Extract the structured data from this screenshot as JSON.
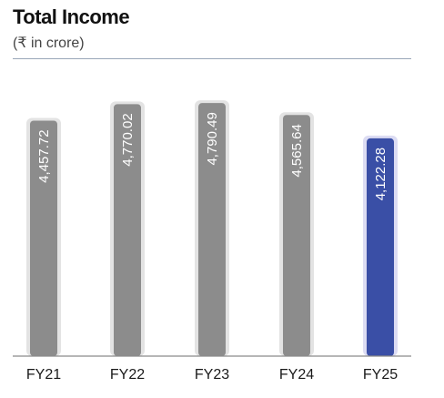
{
  "chart_data": {
    "type": "bar",
    "title": "Total Income",
    "subtitle": "(₹ in crore)",
    "categories": [
      "FY21",
      "FY22",
      "FY23",
      "FY24",
      "FY25"
    ],
    "values": [
      4457.72,
      4770.02,
      4790.49,
      4565.64,
      4122.28
    ],
    "value_labels": [
      "4,457.72",
      "4,770.02",
      "4,790.49",
      "4,565.64",
      "4,122.28"
    ],
    "xlabel": "",
    "ylabel": "",
    "ylim": [
      0,
      5500
    ],
    "grid": false,
    "legend": "none",
    "highlight_index": 4,
    "colors": {
      "bar": "#8c8c8c",
      "bar_shadow": "#e3e3e3",
      "highlight": "#3a4fa6",
      "highlight_shadow": "#dcdcf3",
      "baseline": "#8a8a8a",
      "title_rule": "#9aa7b8"
    }
  }
}
